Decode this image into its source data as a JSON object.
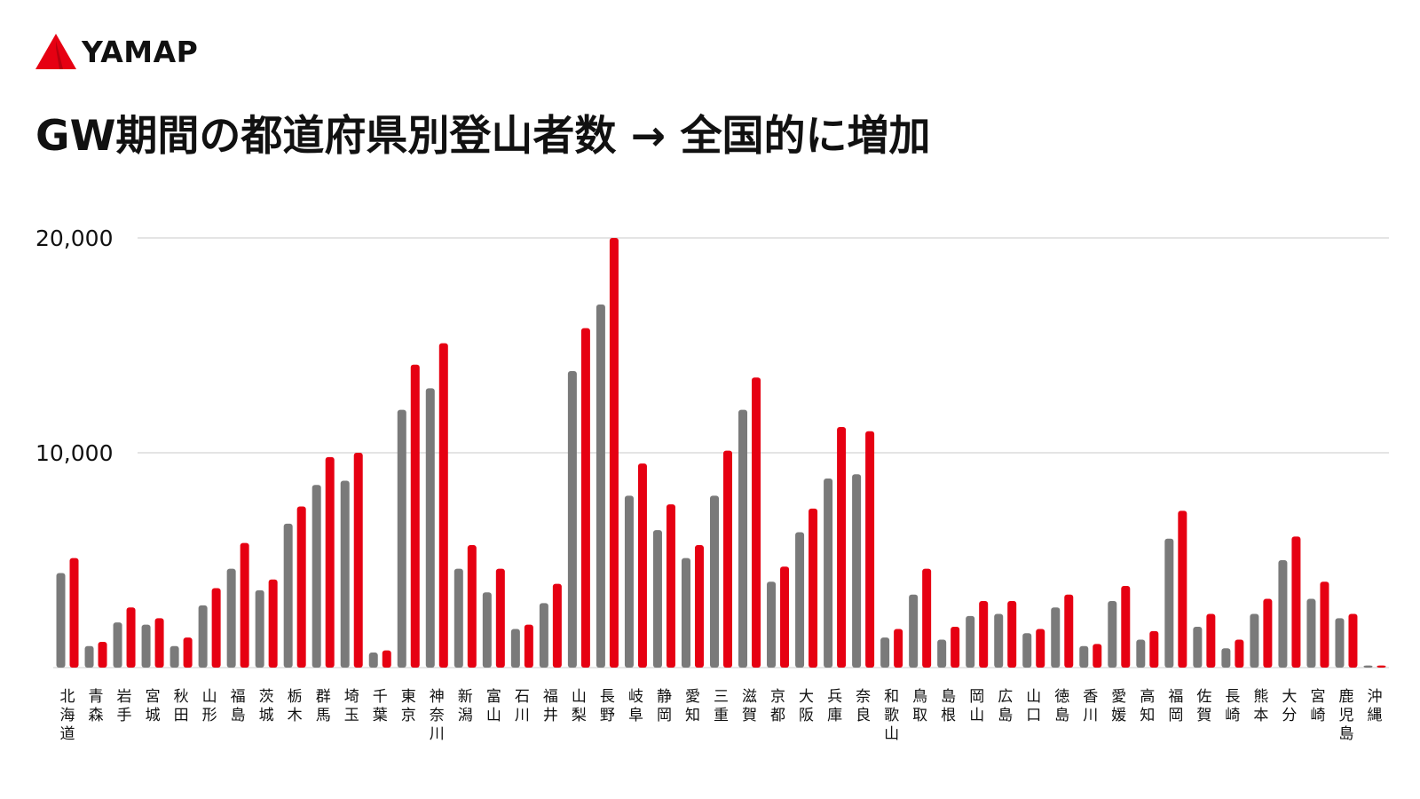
{
  "brand": {
    "name": "YAMAP",
    "logo_icon": "mountain-logo-icon",
    "logo_color": "#e60012"
  },
  "chart_data": {
    "type": "bar",
    "title": "GW期間の都道府県別登山者数 → 全国的に増加",
    "xlabel": "",
    "ylabel": "",
    "ylim": [
      0,
      20000
    ],
    "y_ticks": [
      {
        "value": 10000,
        "label": "10,000"
      },
      {
        "value": 20000,
        "label": "20,000"
      }
    ],
    "grid": true,
    "legend": "none",
    "colors": [
      "#7a7a7a",
      "#e60012"
    ],
    "categories": [
      "北海道",
      "青森",
      "岩手",
      "宮城",
      "秋田",
      "山形",
      "福島",
      "茨城",
      "栃木",
      "群馬",
      "埼玉",
      "千葉",
      "東京",
      "神奈川",
      "新潟",
      "富山",
      "石川",
      "福井",
      "山梨",
      "長野",
      "岐阜",
      "静岡",
      "愛知",
      "三重",
      "滋賀",
      "京都",
      "大阪",
      "兵庫",
      "奈良",
      "和歌山",
      "鳥取",
      "島根",
      "岡山",
      "広島",
      "山口",
      "徳島",
      "香川",
      "愛媛",
      "高知",
      "福岡",
      "佐賀",
      "長崎",
      "熊本",
      "大分",
      "宮崎",
      "鹿児島",
      "沖縄"
    ],
    "series": [
      {
        "values": [
          4400,
          1000,
          2100,
          2000,
          1000,
          2900,
          4600,
          3600,
          6700,
          8500,
          8700,
          700,
          12000,
          13000,
          4600,
          3500,
          1800,
          3000,
          13800,
          16900,
          8000,
          6400,
          5100,
          8000,
          12000,
          4000,
          6300,
          8800,
          9000,
          1400,
          3400,
          1300,
          2400,
          2500,
          1600,
          2800,
          1000,
          3100,
          1300,
          6000,
          1900,
          900,
          2500,
          5000,
          3200,
          2300,
          100
        ]
      },
      {
        "values": [
          5100,
          1200,
          2800,
          2300,
          1400,
          3700,
          5800,
          4100,
          7500,
          9800,
          10000,
          800,
          14100,
          15100,
          5700,
          4600,
          2000,
          3900,
          15800,
          20000,
          9500,
          7600,
          5700,
          10100,
          13500,
          4700,
          7400,
          11200,
          11000,
          1800,
          4600,
          1900,
          3100,
          3100,
          1800,
          3400,
          1100,
          3800,
          1700,
          7300,
          2500,
          1300,
          3200,
          6100,
          4000,
          2500,
          100
        ]
      }
    ]
  }
}
